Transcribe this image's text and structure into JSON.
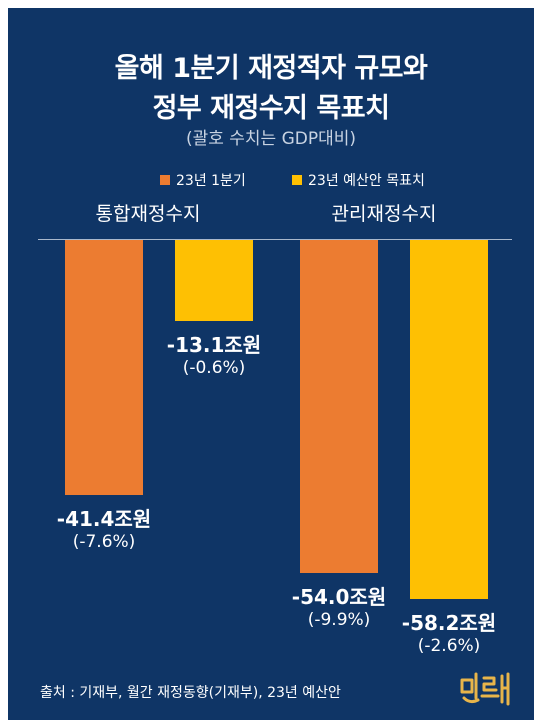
{
  "title_lines": [
    "올해 1분기 재정적자 규모와",
    "정부 재정수지 목표치"
  ],
  "subtitle": "(괄호 수치는 GDP대비)",
  "source": "출처 : 기재부, 월간 재정동향(기재부), 23년 예산안",
  "colors": {
    "background": "#0f3566",
    "series_q1": "#ec7c31",
    "series_target": "#fec003",
    "text": "#ffffff"
  },
  "chart_data": {
    "type": "bar",
    "categories": [
      "통합재정수지",
      "관리재정수지"
    ],
    "series": [
      {
        "name": "23년 1분기",
        "values": [
          -41.4,
          -54.0
        ],
        "labels": [
          "-41.4조원",
          "-54.0조원"
        ],
        "sublabels": [
          "(-7.6%)",
          "(-9.9%)"
        ]
      },
      {
        "name": "23년 예산안 목표치",
        "values": [
          -13.1,
          -58.2
        ],
        "labels": [
          "-13.1조원",
          "-58.2조원"
        ],
        "sublabels": [
          "(-0.6%)",
          "(-2.6%)"
        ]
      }
    ],
    "legend": "top-center",
    "grid": false
  },
  "logo_text": "민들레"
}
